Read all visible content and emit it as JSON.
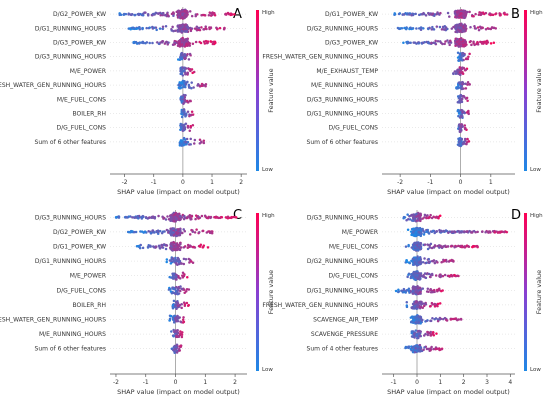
{
  "figure": {
    "colors": {
      "low": "#1e88e5",
      "high": "#ff0052",
      "zero_line": "#999999",
      "grid_line": "#cccccc"
    }
  },
  "chart_data": [
    {
      "type": "scatter",
      "panel": "A",
      "xlabel": "SHAP value (impact on model output)",
      "xlim": [
        -2.5,
        2.2
      ],
      "xticks": [
        -2,
        -1,
        0,
        1,
        2
      ],
      "colorbar": {
        "title": "Feature value",
        "high": "High",
        "low": "Low"
      },
      "features": [
        "D/G2_POWER_KW",
        "D/G1_RUNNING_HOURS",
        "D/G3_POWER_KW",
        "D/G3_RUNNING_HOURS",
        "M/E_POWER",
        "FRESH_WATER_GEN_RUNNING_HOURS",
        "M/E_FUEL_CONS",
        "BOILER_RH",
        "D/G_FUEL_CONS",
        "Sum of 6 other features"
      ],
      "shap_range": [
        [
          -2.2,
          1.8
        ],
        [
          -1.9,
          1.5
        ],
        [
          -1.8,
          1.2
        ],
        [
          -0.2,
          0.35
        ],
        [
          -0.1,
          0.4
        ],
        [
          -0.15,
          0.85
        ],
        [
          -0.1,
          0.3
        ],
        [
          -0.05,
          0.35
        ],
        [
          -0.1,
          0.35
        ],
        [
          -0.1,
          0.75
        ]
      ]
    },
    {
      "type": "scatter",
      "panel": "B",
      "xlabel": "SHAP value (impact on model output)",
      "xlim": [
        -2.6,
        1.8
      ],
      "xticks": [
        -2,
        -1,
        0,
        1
      ],
      "colorbar": {
        "title": "Feature value",
        "high": "High",
        "low": "Low"
      },
      "features": [
        "D/G1_POWER_KW",
        "D/G2_RUNNING_HOURS",
        "D/G3_POWER_KW",
        "FRESH_WATER_GEN_RUNNING_HOURS",
        "M/E_EXHAUST_TEMP",
        "M/E_RUNNING_HOURS",
        "D/G3_RUNNING_HOURS",
        "D/G1_RUNNING_HOURS",
        "D/G_FUEL_CONS",
        "Sum of 6 other features"
      ],
      "shap_range": [
        [
          -2.2,
          1.6
        ],
        [
          -2.1,
          1.2
        ],
        [
          -1.9,
          1.1
        ],
        [
          -0.1,
          0.3
        ],
        [
          -0.35,
          0.25
        ],
        [
          -0.15,
          0.3
        ],
        [
          -0.1,
          0.25
        ],
        [
          -0.1,
          0.3
        ],
        [
          -0.1,
          0.25
        ],
        [
          -0.1,
          0.3
        ]
      ]
    },
    {
      "type": "scatter",
      "panel": "C",
      "xlabel": "SHAP value (impact on model output)",
      "xlim": [
        -2.2,
        2.4
      ],
      "xticks": [
        -2,
        -1,
        0,
        1,
        2
      ],
      "colorbar": {
        "title": "Feature value",
        "high": "High",
        "low": "Low"
      },
      "features": [
        "D/G3_RUNNING_HOURS",
        "D/G2_POWER_KW",
        "D/G1_POWER_KW",
        "D/G1_RUNNING_HOURS",
        "M/E_POWER",
        "D/G_FUEL_CONS",
        "BOILER_RH",
        "FRESH_WATER_GEN_RUNNING_HOURS",
        "M/E_RUNNING_HOURS",
        "Sum of 6 other features"
      ],
      "shap_range": [
        [
          -2.0,
          2.1
        ],
        [
          -1.6,
          1.3
        ],
        [
          -1.3,
          1.1
        ],
        [
          -0.3,
          0.6
        ],
        [
          -0.2,
          0.4
        ],
        [
          -0.25,
          0.45
        ],
        [
          -0.1,
          0.45
        ],
        [
          -0.2,
          0.3
        ],
        [
          -0.15,
          0.25
        ],
        [
          -0.15,
          0.2
        ]
      ]
    },
    {
      "type": "scatter",
      "panel": "D",
      "xlabel": "SHAP value (impact on model output)",
      "xlim": [
        -1.5,
        4.2
      ],
      "xticks": [
        -1,
        0,
        1,
        2,
        3,
        4
      ],
      "colorbar": {
        "title": "Feature value",
        "high": "High",
        "low": "Low"
      },
      "features": [
        "D/G3_RUNNING_HOURS",
        "M/E_POWER",
        "M/E_FUEL_CONS",
        "D/G2_RUNNING_HOURS",
        "D/G_FUEL_CONS",
        "D/G1_RUNNING_HOURS",
        "FRESH_WATER_GEN_RUNNING_HOURS",
        "SCAVENGE_AIR_TEMP",
        "SCAVENGE_PRESSURE",
        "Sum of 4 other features"
      ],
      "shap_range": [
        [
          -0.6,
          1.0
        ],
        [
          -0.4,
          3.9
        ],
        [
          -0.5,
          2.6
        ],
        [
          -0.5,
          1.6
        ],
        [
          -0.45,
          1.8
        ],
        [
          -0.9,
          1.1
        ],
        [
          -0.5,
          1.0
        ],
        [
          -0.3,
          1.9
        ],
        [
          -0.25,
          0.9
        ],
        [
          -0.5,
          1.1
        ]
      ]
    }
  ]
}
